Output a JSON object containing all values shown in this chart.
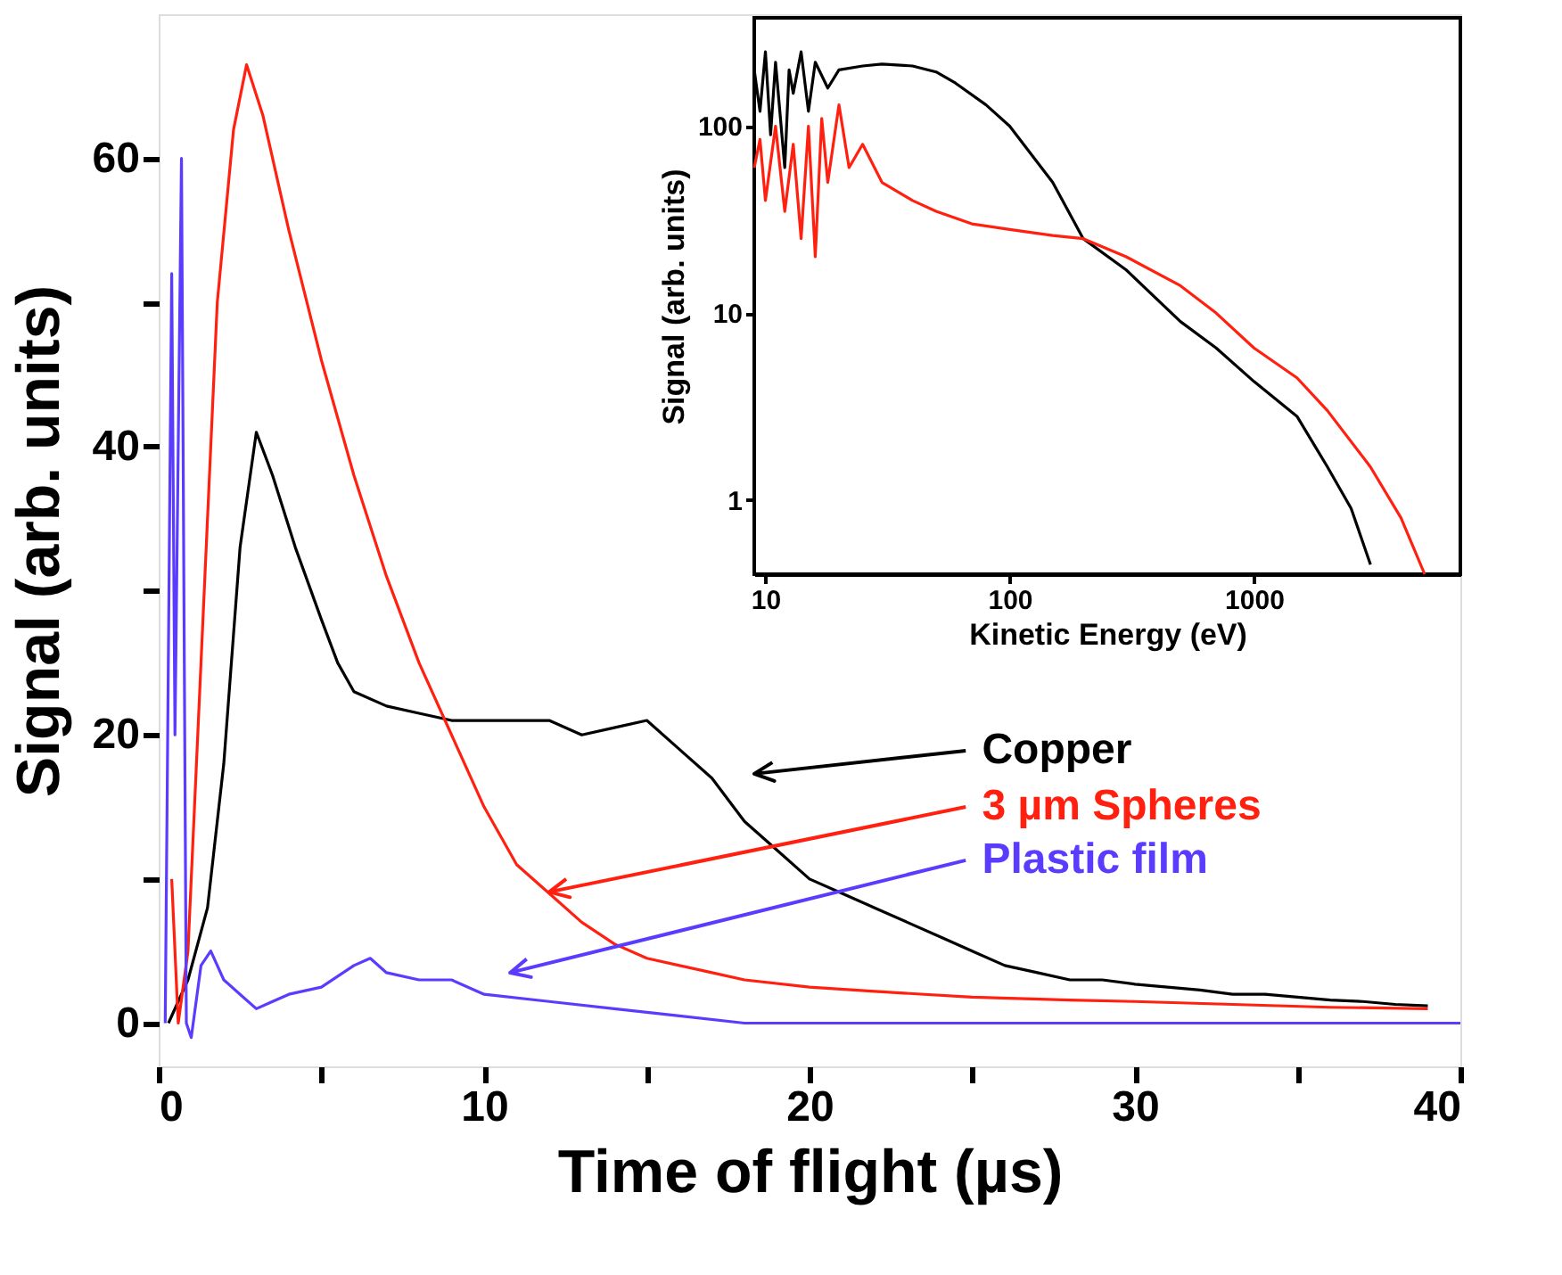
{
  "chart_data": [
    {
      "type": "line",
      "xlabel": "Time of flight (µs)",
      "ylabel": "Signal (arb. units)",
      "xlim": [
        0,
        40
      ],
      "ylim": [
        -3,
        70
      ],
      "xticks": [
        0,
        {
          "value": 5,
          "label": null
        },
        10,
        {
          "value": 15,
          "label": null
        },
        20,
        {
          "value": 25,
          "label": null
        },
        30,
        {
          "value": 35,
          "label": null
        },
        40
      ],
      "yticks": [
        0,
        {
          "value": 10,
          "label": null
        },
        20,
        {
          "value": 30,
          "label": null
        },
        40,
        {
          "value": 50,
          "label": null
        },
        60
      ],
      "line_style": "solid",
      "series": [
        {
          "name": "Copper",
          "color": "#000000",
          "x": [
            0.3,
            0.9,
            1.5,
            2.0,
            2.5,
            3.0,
            3.5,
            4.2,
            5,
            5.5,
            6,
            7,
            8,
            9,
            10,
            11,
            12,
            13,
            14,
            15,
            16,
            17,
            18,
            19,
            20,
            21,
            22,
            23,
            24,
            25,
            26,
            27,
            28,
            29,
            30,
            31,
            32,
            33,
            34,
            35,
            36,
            37,
            38,
            39
          ],
          "values": [
            0,
            3,
            8,
            18,
            33,
            41,
            38,
            33,
            28,
            25,
            23,
            22,
            21.5,
            21,
            21,
            21,
            21,
            20,
            20.5,
            21,
            19,
            17,
            14,
            12,
            10,
            9,
            8,
            7,
            6,
            5,
            4,
            3.5,
            3,
            3,
            2.7,
            2.5,
            2.3,
            2,
            2,
            1.8,
            1.6,
            1.5,
            1.3,
            1.2
          ]
        },
        {
          "name": "3 µm Spheres",
          "color": "#ff2010",
          "x": [
            0.4,
            0.6,
            0.9,
            1.3,
            1.8,
            2.3,
            2.7,
            3.2,
            4,
            5,
            6,
            7,
            8,
            9,
            10,
            11,
            12,
            13,
            14,
            15,
            16,
            17,
            18,
            20,
            22,
            25,
            28,
            30,
            33,
            36,
            39
          ],
          "values": [
            10,
            0,
            5,
            25,
            50,
            62,
            66.5,
            63,
            55,
            46,
            38,
            31,
            25,
            20,
            15,
            11,
            9,
            7,
            5.5,
            4.5,
            4,
            3.5,
            3,
            2.5,
            2.2,
            1.8,
            1.6,
            1.5,
            1.3,
            1.1,
            1
          ]
        },
        {
          "name": "Plastic film",
          "color": "#5a3cff",
          "x": [
            0.2,
            0.4,
            0.5,
            0.7,
            0.85,
            1.0,
            1.3,
            1.6,
            2,
            2.5,
            3,
            3.5,
            4,
            5,
            6,
            6.5,
            7,
            8,
            9,
            10,
            12,
            14,
            16,
            18,
            20,
            25,
            30,
            35,
            40
          ],
          "values": [
            0,
            52,
            20,
            60,
            0,
            -1,
            4,
            5,
            3,
            2,
            1,
            1.5,
            2,
            2.5,
            4,
            4.5,
            3.5,
            3,
            3,
            2,
            1.5,
            1,
            0.5,
            0,
            0,
            0,
            0,
            0,
            0
          ]
        }
      ]
    },
    {
      "type": "line",
      "xlabel": "Kinetic Energy (eV)",
      "ylabel": "Signal (arb. units)",
      "log": "xy",
      "xlim": [
        9,
        7000
      ],
      "ylim": [
        0.4,
        380
      ],
      "xticks": [
        10,
        100,
        1000
      ],
      "yticks": [
        1,
        10,
        100
      ],
      "line_style": "solid",
      "series": [
        {
          "color": "#000000",
          "x": [
            9,
            9.5,
            10,
            10.5,
            11,
            12,
            12.5,
            13,
            14,
            15,
            16,
            18,
            20,
            25,
            30,
            40,
            50,
            60,
            80,
            100,
            150,
            200,
            300,
            500,
            700,
            1000,
            1500,
            2000,
            2500,
            3000
          ],
          "values": [
            200,
            120,
            250,
            90,
            220,
            60,
            200,
            150,
            250,
            120,
            220,
            160,
            200,
            210,
            215,
            210,
            195,
            170,
            130,
            100,
            50,
            25,
            17,
            9,
            6.5,
            4.3,
            2.8,
            1.5,
            0.9,
            0.45
          ]
        },
        {
          "color": "#ff2010",
          "x": [
            9,
            9.5,
            10,
            11,
            12,
            13,
            14,
            15,
            16,
            17,
            18,
            20,
            22,
            25,
            30,
            40,
            50,
            70,
            100,
            150,
            200,
            300,
            500,
            700,
            1000,
            1500,
            2000,
            3000,
            4000,
            5000
          ],
          "values": [
            60,
            85,
            40,
            100,
            35,
            80,
            25,
            100,
            20,
            110,
            50,
            130,
            60,
            80,
            50,
            40,
            35,
            30,
            28,
            26,
            25,
            20,
            14,
            10,
            6.5,
            4.5,
            3,
            1.5,
            0.8,
            0.4
          ]
        }
      ]
    }
  ]
}
